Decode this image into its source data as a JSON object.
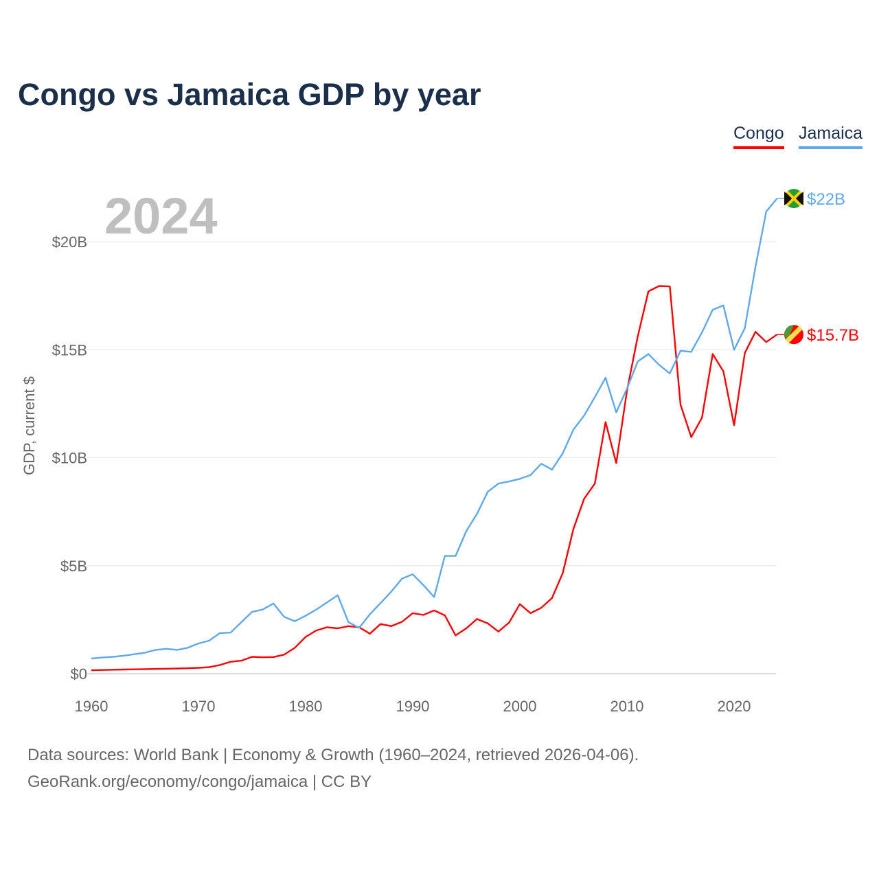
{
  "title": "Congo vs Jamaica GDP by year",
  "year_label": "2024",
  "source_line1": "Data sources: World Bank | Economy & Growth (1960–2024, retrieved 2026-04-06).",
  "source_line2": "GeoRank.org/economy/congo/jamaica | CC BY",
  "chart_data": {
    "type": "line",
    "title": "Congo vs Jamaica GDP by year",
    "xlabel": "",
    "ylabel": "GDP, current $",
    "xlim": [
      1960,
      2024
    ],
    "ylim": [
      0,
      22
    ],
    "x_ticks": [
      1960,
      1970,
      1980,
      1990,
      2000,
      2010,
      2020
    ],
    "y_ticks": [
      0,
      5,
      10,
      15,
      20
    ],
    "y_tick_labels": [
      "$0",
      "$5B",
      "$10B",
      "$15B",
      "$20B"
    ],
    "grid": true,
    "legend_position": "top-right",
    "units": "billion USD",
    "x": [
      1960,
      1961,
      1962,
      1963,
      1964,
      1965,
      1966,
      1967,
      1968,
      1969,
      1970,
      1971,
      1972,
      1973,
      1974,
      1975,
      1976,
      1977,
      1978,
      1979,
      1980,
      1981,
      1982,
      1983,
      1984,
      1985,
      1986,
      1987,
      1988,
      1989,
      1990,
      1991,
      1992,
      1993,
      1994,
      1995,
      1996,
      1997,
      1998,
      1999,
      2000,
      2001,
      2002,
      2003,
      2004,
      2005,
      2006,
      2007,
      2008,
      2009,
      2010,
      2011,
      2012,
      2013,
      2014,
      2015,
      2016,
      2017,
      2018,
      2019,
      2020,
      2021,
      2022,
      2023,
      2024
    ],
    "series": [
      {
        "name": "Congo",
        "color": "#ff0000",
        "end_label": "$15.7B",
        "values": [
          0.16,
          0.17,
          0.18,
          0.19,
          0.2,
          0.21,
          0.22,
          0.23,
          0.24,
          0.25,
          0.27,
          0.3,
          0.4,
          0.55,
          0.6,
          0.78,
          0.76,
          0.77,
          0.88,
          1.2,
          1.7,
          2.0,
          2.15,
          2.1,
          2.2,
          2.15,
          1.85,
          2.3,
          2.2,
          2.4,
          2.8,
          2.72,
          2.93,
          2.7,
          1.77,
          2.1,
          2.53,
          2.33,
          1.95,
          2.37,
          3.22,
          2.8,
          3.05,
          3.5,
          4.65,
          6.7,
          8.1,
          8.8,
          11.65,
          9.75,
          13.1,
          15.6,
          17.7,
          17.95,
          17.93,
          12.45,
          10.95,
          11.85,
          14.8,
          14.0,
          11.5,
          14.85,
          15.83,
          15.35,
          15.7
        ]
      },
      {
        "name": "Jamaica",
        "color": "#60a8ec",
        "end_label": "$22B",
        "values": [
          0.7,
          0.75,
          0.78,
          0.83,
          0.9,
          0.97,
          1.1,
          1.15,
          1.1,
          1.2,
          1.4,
          1.53,
          1.88,
          1.9,
          2.38,
          2.86,
          2.97,
          3.25,
          2.63,
          2.43,
          2.68,
          2.97,
          3.3,
          3.63,
          2.38,
          2.12,
          2.75,
          3.27,
          3.8,
          4.4,
          4.6,
          4.1,
          3.55,
          5.45,
          5.45,
          6.6,
          7.4,
          8.42,
          8.8,
          8.9,
          9.02,
          9.2,
          9.72,
          9.45,
          10.2,
          11.3,
          11.95,
          12.8,
          13.7,
          12.1,
          13.2,
          14.45,
          14.8,
          14.3,
          13.9,
          14.95,
          14.9,
          15.8,
          16.85,
          17.05,
          15.0,
          16.0,
          18.85,
          21.4,
          22.0
        ]
      }
    ]
  }
}
